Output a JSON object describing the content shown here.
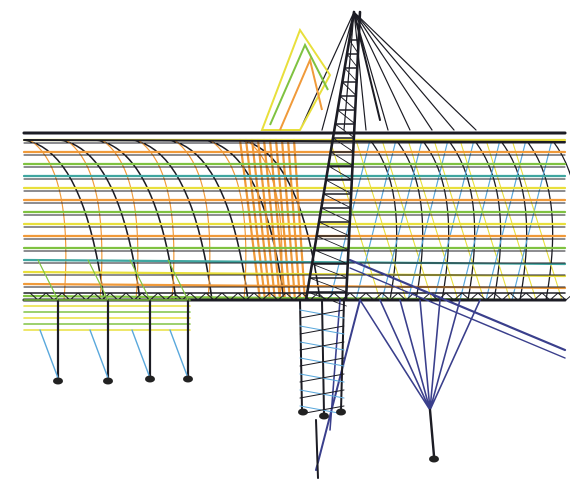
{
  "figure": {
    "colors": {
      "background": "#ffffff",
      "frame": "#1c1c24",
      "arch_yellow": "#e8df3c",
      "arch_orange": "#f09a3a",
      "arch_green": "#7fc241",
      "teal": "#3fa6a0",
      "light_blue": "#5aa8dc",
      "cable_navy": "#3a3f8c",
      "support": "#222222"
    }
  }
}
